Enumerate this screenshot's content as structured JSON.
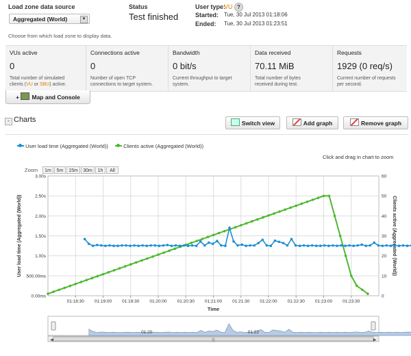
{
  "load_zone": {
    "title": "Load zone data source",
    "selected": "Aggregated (World)",
    "hint": "Choose from which load zone to display data."
  },
  "status": {
    "title": "Status",
    "value": "Test finished"
  },
  "user_type": {
    "label": "User type:",
    "value": "VU",
    "help": "?"
  },
  "times": {
    "started_label": "Started:",
    "started_value": "Tue, 30 Jul 2013 01:18:06",
    "ended_label": "Ended:",
    "ended_value": "Tue, 30 Jul 2013 01:23:51"
  },
  "metrics": [
    {
      "title": "VUs active",
      "value": "0",
      "desc1": "Total number of simulated",
      "desc2_pre": "clients (",
      "vu": "VU",
      "or": " or ",
      "sbu": "SBU",
      "desc2_post": ") active."
    },
    {
      "title": "Connections active",
      "value": "0",
      "desc1": "Number of open TCP",
      "desc2": "connections to target system."
    },
    {
      "title": "Bandwidth",
      "value": "0 bit/s",
      "desc1": "Current throughput to target",
      "desc2": "system."
    },
    {
      "title": "Data received",
      "value": "70.11 MiB",
      "desc1": "Total number of bytes",
      "desc2": "received during test."
    },
    {
      "title": "Requests",
      "value": "1929 (0 req/s)",
      "desc1": "Current number of requests",
      "desc2": "per second."
    }
  ],
  "map_console": {
    "plus": "+",
    "label": "Map and Console"
  },
  "charts_section": {
    "toggle": "-",
    "title": "Charts",
    "switch_view": "Switch view",
    "add_graph": "Add graph",
    "remove_graph": "Remove graph"
  },
  "colors": {
    "blue": "#1a8fd6",
    "green": "#4db82f",
    "accent": "#e07b00"
  },
  "chart_data": {
    "type": "line",
    "legend": [
      "User load time (Aggregated (World))",
      "Clients active (Aggregated (World))"
    ],
    "zoom_hint": "Click and drag in chart to zoom",
    "zoom_label": "Zoom",
    "zoom_options": [
      "1m",
      "5m",
      "15m",
      "30m",
      "1h",
      "All"
    ],
    "xlabel": "Time",
    "ylabel_left": "User load time (Aggregated (World))",
    "ylabel_right": "Clients active (Aggregated (World))",
    "x_ticks": [
      "01:18:30",
      "01:19:00",
      "01:19:30",
      "01:20:00",
      "01:20:30",
      "01:21:00",
      "01:21:30",
      "01:22:00",
      "01:22:30",
      "01:23:00",
      "01:23:30"
    ],
    "x_range_seconds": [
      0,
      360
    ],
    "left_ticks": [
      "0.00ms",
      "500.00ms",
      "1.00s",
      "1.50s",
      "2.00s",
      "2.50s",
      "3.00s"
    ],
    "left_range": [
      0,
      3
    ],
    "right_ticks": [
      "0",
      "10",
      "20",
      "30",
      "40",
      "50",
      "60"
    ],
    "right_range": [
      0,
      60
    ],
    "series": [
      {
        "name": "User load time (Aggregated (World))",
        "axis": "left",
        "color": "#1a8fd6",
        "x_start": 40,
        "x_step": 4.5,
        "values": [
          1.42,
          1.3,
          1.25,
          1.27,
          1.26,
          1.25,
          1.26,
          1.25,
          1.25,
          1.26,
          1.26,
          1.25,
          1.26,
          1.25,
          1.26,
          1.25,
          1.26,
          1.26,
          1.25,
          1.26,
          1.27,
          1.25,
          1.26,
          1.25,
          1.26,
          1.25,
          1.26,
          1.25,
          1.36,
          1.26,
          1.33,
          1.3,
          1.37,
          1.26,
          1.25,
          1.7,
          1.36,
          1.26,
          1.28,
          1.25,
          1.26,
          1.26,
          1.32,
          1.4,
          1.26,
          1.25,
          1.38,
          1.35,
          1.32,
          1.26,
          1.42,
          1.26,
          1.25,
          1.26,
          1.25,
          1.26,
          1.25,
          1.25,
          1.26,
          1.25,
          1.26,
          1.25,
          1.26,
          1.25,
          1.26,
          1.25,
          1.26,
          1.28,
          1.25,
          1.26,
          1.33,
          1.26,
          1.25,
          1.26,
          1.25,
          1.26,
          1.25,
          1.26,
          1.25,
          1.26,
          1.27,
          1.25,
          1.26,
          1.25,
          1.26,
          1.27,
          1.25,
          1.26,
          1.28,
          1.26,
          1.25,
          1.26,
          1.25,
          1.26,
          1.25,
          1.26,
          1.26,
          1.25,
          1.26,
          1.27,
          1.25,
          1.26,
          1.28,
          1.25
        ]
      },
      {
        "name": "Clients active (Aggregated (World))",
        "axis": "right",
        "color": "#4db82f",
        "points": [
          [
            0,
            1
          ],
          [
            300,
            50
          ],
          [
            306,
            50
          ],
          [
            312,
            40
          ],
          [
            318,
            30
          ],
          [
            324,
            20
          ],
          [
            330,
            10
          ],
          [
            336,
            5
          ],
          [
            342,
            3
          ],
          [
            348,
            1
          ]
        ]
      }
    ],
    "navigator": {
      "labels": [
        "01:20",
        "01:22"
      ]
    }
  }
}
